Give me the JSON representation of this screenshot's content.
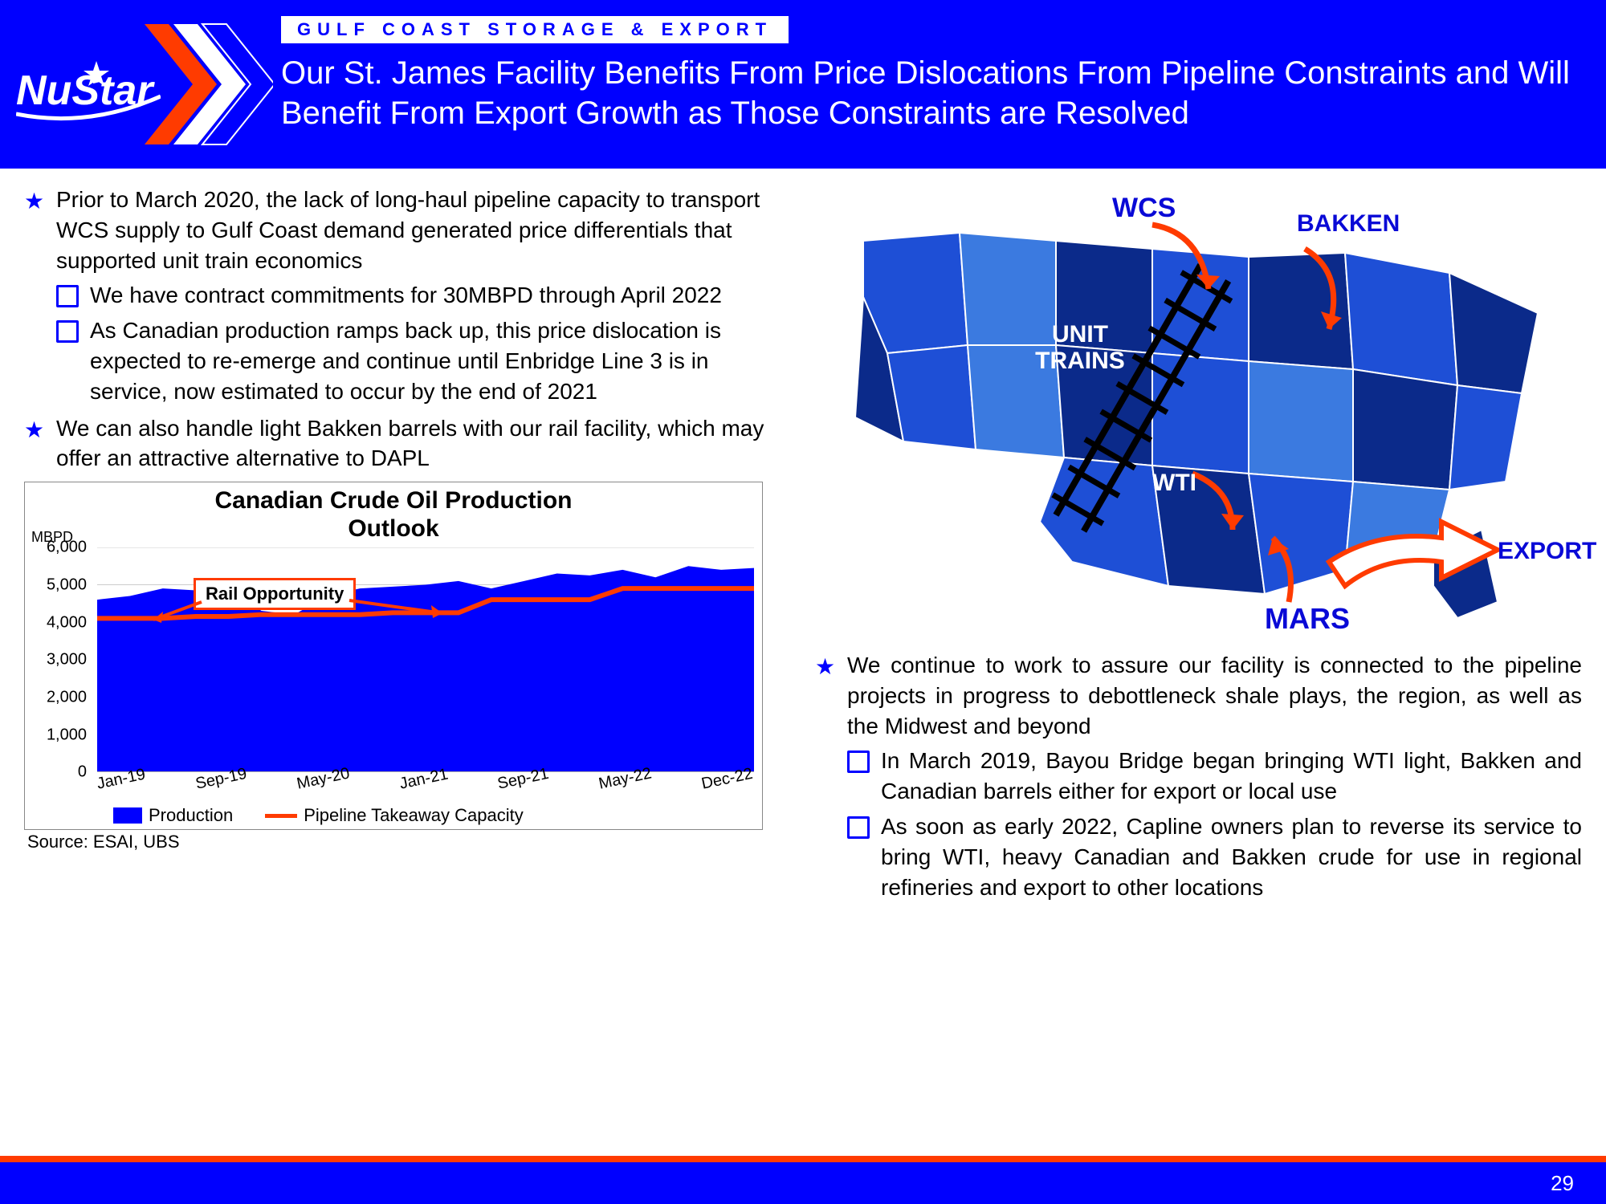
{
  "colors": {
    "brand_blue": "#0000ff",
    "accent_red": "#ff3b00",
    "map_blue_dark": "#0b2a8a",
    "map_blue_mid": "#1e4fd6",
    "map_blue_light": "#3b7ae0",
    "white": "#ffffff"
  },
  "header": {
    "logo_text": "NuStar",
    "section_label": "GULF COAST STORAGE & EXPORT",
    "title": "Our St. James Facility Benefits From Price Dislocations From Pipeline Constraints and Will Benefit From Export Growth as Those Constraints are Resolved"
  },
  "left_bullets": [
    {
      "text": "Prior to March 2020, the lack of long-haul pipeline capacity to transport WCS supply to Gulf Coast demand generated price differentials that supported unit train economics",
      "subs": [
        "We have contract commitments for 30MBPD through April 2022",
        "As Canadian production ramps back up, this price dislocation is expected to re-emerge and continue until Enbridge Line 3 is in service, now estimated to occur by the end of 2021"
      ]
    },
    {
      "text": "We can also handle light Bakken barrels with our rail facility, which may offer an attractive alternative to DAPL",
      "subs": []
    }
  ],
  "right_bullets": [
    {
      "text": "We continue to work to assure our facility is connected to the pipeline projects in progress to debottleneck shale plays, the region, as well as the Midwest and beyond",
      "subs": [
        "In March 2019, Bayou Bridge began bringing WTI light, Bakken and Canadian barrels either for export or local use",
        "As soon as early 2022, Capline owners plan to reverse its service to bring WTI, heavy Canadian and Bakken crude for use in regional refineries and export to other locations"
      ]
    }
  ],
  "map": {
    "labels": {
      "wcs": "WCS",
      "bakken": "BAKKEN",
      "unit_trains": "UNIT TRAINS",
      "wti": "WTI",
      "mars": "MARS",
      "export": "EXPORT"
    }
  },
  "chart": {
    "title_line1": "Canadian Crude Oil Production",
    "title_line2": "Outlook",
    "ylabel": "MBPD",
    "type": "area_with_line",
    "ylim": [
      0,
      6000
    ],
    "ytick_step": 1000,
    "yticks": [
      "0",
      "1,000",
      "2,000",
      "3,000",
      "4,000",
      "5,000",
      "6,000"
    ],
    "x_categories": [
      "Jan-19",
      "Sep-19",
      "May-20",
      "Jan-21",
      "Sep-21",
      "May-22",
      "Dec-22"
    ],
    "production_values": [
      4600,
      4700,
      4900,
      4850,
      5000,
      4300,
      4200,
      4700,
      4900,
      4950,
      5000,
      5100,
      4900,
      5100,
      5300,
      5250,
      5400,
      5200,
      5500,
      5400,
      5450
    ],
    "pipeline_values": [
      4100,
      4100,
      4100,
      4150,
      4150,
      4200,
      4200,
      4200,
      4200,
      4250,
      4250,
      4250,
      4600,
      4600,
      4600,
      4600,
      4900,
      4900,
      4900,
      4900,
      4900
    ],
    "callout_label": "Rail Opportunity",
    "legend": {
      "production": "Production",
      "pipeline": "Pipeline Takeaway Capacity"
    },
    "production_color": "#0000ff",
    "pipeline_color": "#ff3b00",
    "grid_color": "#cccccc",
    "background_color": "#ffffff"
  },
  "source": "Source: ESAI, UBS",
  "page_number": "29"
}
